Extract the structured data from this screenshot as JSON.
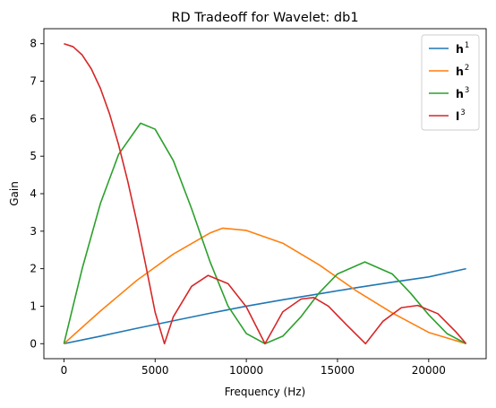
{
  "chart_data": {
    "type": "line",
    "title": "RD Tradeoff for Wavelet: db1",
    "xlabel": "Frequency (Hz)",
    "ylabel": "Gain",
    "xlim": [
      -1100,
      23150
    ],
    "ylim": [
      -0.4,
      8.4
    ],
    "xticks": [
      0,
      5000,
      10000,
      15000,
      20000
    ],
    "yticks": [
      0,
      1,
      2,
      3,
      4,
      5,
      6,
      7,
      8
    ],
    "grid": false,
    "legend_position": "top-right",
    "series": [
      {
        "name_main": "h",
        "name_sup": "1",
        "color": "#1f77b4",
        "x": [
          0,
          2000,
          4000,
          6000,
          8000,
          10000,
          12000,
          14000,
          16000,
          18000,
          20000,
          22050
        ],
        "values": [
          0,
          0.2,
          0.41,
          0.61,
          0.81,
          1.0,
          1.17,
          1.33,
          1.49,
          1.64,
          1.78,
          2.0
        ]
      },
      {
        "name_main": "h",
        "name_sup": "2",
        "color": "#ff7f0e",
        "x": [
          0,
          2000,
          4000,
          6000,
          8000,
          8700,
          10000,
          12000,
          14000,
          16000,
          18000,
          20000,
          22050
        ],
        "values": [
          0,
          0.87,
          1.69,
          2.39,
          2.95,
          3.08,
          3.02,
          2.68,
          2.1,
          1.42,
          0.82,
          0.3,
          0
        ]
      },
      {
        "name_main": "h",
        "name_sup": "3",
        "color": "#2ca02c",
        "x": [
          0,
          1000,
          2000,
          3000,
          4200,
          5000,
          6000,
          7000,
          8000,
          9000,
          10000,
          11025,
          12000,
          13000,
          14000,
          15000,
          16500,
          18000,
          19000,
          20000,
          21000,
          22050
        ],
        "values": [
          0,
          2.0,
          3.74,
          5.05,
          5.88,
          5.72,
          4.88,
          3.6,
          2.2,
          1.0,
          0.27,
          0,
          0.2,
          0.72,
          1.36,
          1.86,
          2.18,
          1.86,
          1.35,
          0.77,
          0.27,
          0
        ]
      },
      {
        "name_main": "l",
        "name_sup": "3",
        "color": "#d62728",
        "x": [
          0,
          500,
          1000,
          1500,
          2000,
          2500,
          3000,
          3500,
          4000,
          4500,
          5000,
          5512,
          6000,
          7000,
          7900,
          9000,
          10000,
          11025,
          12000,
          13000,
          13700,
          14500,
          15500,
          16537,
          17500,
          18500,
          19400,
          20500,
          21500,
          22050
        ],
        "values": [
          8,
          7.92,
          7.7,
          7.33,
          6.81,
          6.13,
          5.3,
          4.33,
          3.24,
          2.06,
          0.84,
          0,
          0.72,
          1.53,
          1.82,
          1.6,
          0.98,
          0,
          0.85,
          1.19,
          1.23,
          1.0,
          0.5,
          0,
          0.6,
          0.96,
          1.02,
          0.8,
          0.31,
          0
        ]
      }
    ]
  }
}
